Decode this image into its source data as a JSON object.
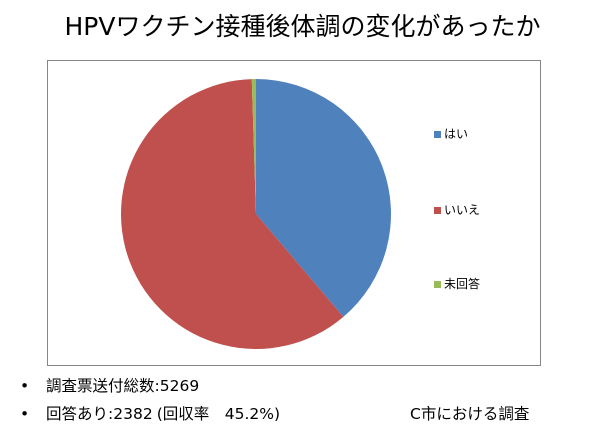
{
  "title": "HPVワクチン接種後体調の変化があったか",
  "chart_data": {
    "type": "pie",
    "categories": [
      "はい",
      "いいえ",
      "未回答"
    ],
    "values": [
      38.8,
      60.7,
      0.5
    ],
    "colors": [
      "#4f81bd",
      "#c0504d",
      "#9bbb59"
    ],
    "legend": "right"
  },
  "notes": {
    "bullet": "•",
    "survey_count_label": "調査票送付総数:",
    "survey_count": "5269",
    "responses_label": "回答あり:",
    "responses": "2382",
    "response_rate": "(回収率　45.2%)",
    "source": "C市における調査"
  }
}
